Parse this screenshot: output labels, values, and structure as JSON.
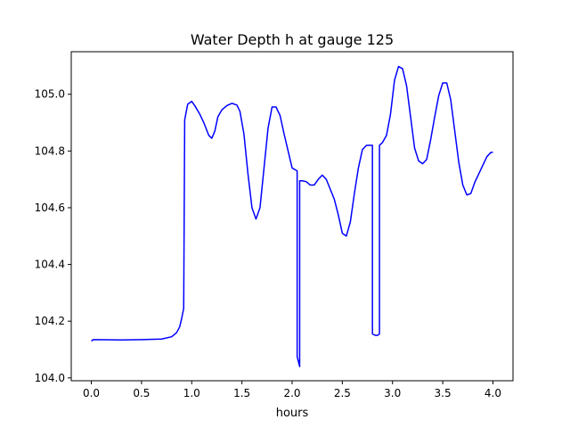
{
  "chart_data": {
    "type": "line",
    "title": "Water Depth h at gauge 125",
    "xlabel": "hours",
    "ylabel": "",
    "xlim": [
      -0.2,
      4.2
    ],
    "ylim": [
      103.99,
      105.15
    ],
    "xticks": [
      0.0,
      0.5,
      1.0,
      1.5,
      2.0,
      2.5,
      3.0,
      3.5,
      4.0
    ],
    "xtick_labels": [
      "0.0",
      "0.5",
      "1.0",
      "1.5",
      "2.0",
      "2.5",
      "3.0",
      "3.5",
      "4.0"
    ],
    "yticks": [
      104.0,
      104.2,
      104.4,
      104.6,
      104.8,
      105.0
    ],
    "ytick_labels": [
      "104.0",
      "104.2",
      "104.4",
      "104.6",
      "104.8",
      "105.0"
    ],
    "grid": false,
    "series": [
      {
        "color": "#0000ff",
        "x": [
          0.0,
          0.02,
          0.3,
          0.5,
          0.7,
          0.8,
          0.85,
          0.88,
          0.9,
          0.92,
          0.93,
          0.93,
          0.96,
          1.0,
          1.03,
          1.08,
          1.12,
          1.17,
          1.2,
          1.23,
          1.26,
          1.3,
          1.35,
          1.4,
          1.45,
          1.48,
          1.52,
          1.56,
          1.6,
          1.64,
          1.68,
          1.72,
          1.76,
          1.8,
          1.84,
          1.88,
          1.92,
          1.96,
          2.0,
          2.05,
          2.05,
          2.075,
          2.075,
          2.1,
          2.14,
          2.18,
          2.22,
          2.26,
          2.3,
          2.34,
          2.38,
          2.42,
          2.46,
          2.5,
          2.54,
          2.58,
          2.62,
          2.66,
          2.7,
          2.74,
          2.78,
          2.8,
          2.8,
          2.83,
          2.85,
          2.87,
          2.87,
          2.9,
          2.94,
          2.98,
          3.02,
          3.06,
          3.1,
          3.14,
          3.18,
          3.22,
          3.26,
          3.3,
          3.34,
          3.38,
          3.42,
          3.46,
          3.5,
          3.54,
          3.58,
          3.62,
          3.66,
          3.7,
          3.74,
          3.78,
          3.82,
          3.86,
          3.9,
          3.94,
          3.98,
          4.0
        ],
        "y": [
          104.13,
          104.135,
          104.134,
          104.135,
          104.137,
          104.145,
          104.16,
          104.18,
          104.21,
          104.245,
          104.91,
          104.91,
          104.965,
          104.975,
          104.96,
          104.93,
          104.9,
          104.855,
          104.845,
          104.87,
          104.92,
          104.945,
          104.96,
          104.968,
          104.962,
          104.94,
          104.86,
          104.72,
          104.6,
          104.56,
          104.6,
          104.74,
          104.88,
          104.955,
          104.955,
          104.925,
          104.86,
          104.8,
          104.74,
          104.73,
          104.075,
          104.04,
          104.695,
          104.695,
          104.692,
          104.68,
          104.68,
          104.7,
          104.715,
          104.7,
          104.665,
          104.63,
          104.575,
          104.51,
          104.5,
          104.55,
          104.65,
          104.74,
          104.805,
          104.82,
          104.82,
          104.82,
          104.155,
          104.15,
          104.15,
          104.155,
          104.82,
          104.83,
          104.855,
          104.93,
          105.05,
          105.098,
          105.09,
          105.03,
          104.92,
          104.81,
          104.765,
          104.755,
          104.77,
          104.84,
          104.92,
          104.995,
          105.04,
          105.04,
          104.98,
          104.87,
          104.76,
          104.68,
          104.645,
          104.65,
          104.69,
          104.72,
          104.75,
          104.78,
          104.795,
          104.795
        ]
      }
    ]
  }
}
